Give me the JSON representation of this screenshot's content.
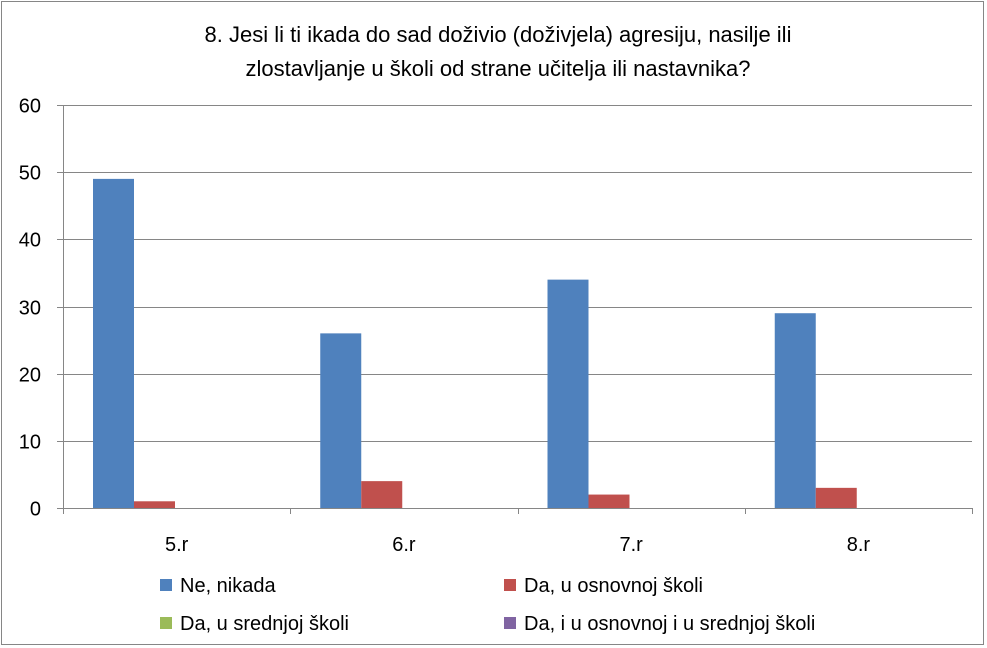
{
  "chart_data": {
    "type": "bar",
    "title_lines": [
      "8. Jesi li ti ikada do sad doživio (doživjela) agresiju, nasilje ili",
      "zlostavljanje u školi od strane učitelja ili nastavnika?"
    ],
    "categories": [
      "5.r",
      "6.r",
      "7.r",
      "8.r"
    ],
    "series": [
      {
        "name": "Ne, nikada",
        "color": "#4F81BD",
        "values": [
          49,
          26,
          34,
          29
        ]
      },
      {
        "name": "Da, u osnovnoj školi",
        "color": "#C0504D",
        "values": [
          1,
          4,
          2,
          3
        ]
      },
      {
        "name": "Da, u srednjoj školi",
        "color": "#9BBB59",
        "values": [
          0,
          0,
          0,
          0
        ]
      },
      {
        "name": "Da, i u osnovnoj i u srednjoj školi",
        "color": "#8064A2",
        "values": [
          0,
          0,
          0,
          0
        ]
      }
    ],
    "ylim": [
      0,
      60
    ],
    "yticks": [
      0,
      10,
      20,
      30,
      40,
      50,
      60
    ],
    "grid": true,
    "legend_position": "bottom"
  }
}
